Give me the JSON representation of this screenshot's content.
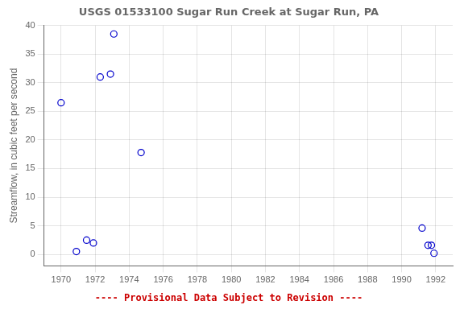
{
  "chart_data": {
    "type": "scatter",
    "title": "USGS 01533100 Sugar Run Creek at Sugar Run, PA",
    "ylabel": "Streamflow, in cubic feet per second",
    "x": [
      1970.0,
      1970.9,
      1971.5,
      1971.9,
      1972.3,
      1973.1,
      1972.9,
      1974.7,
      1991.2,
      1991.55,
      1991.75,
      1991.9
    ],
    "values": [
      26.5,
      0.5,
      2.5,
      2.0,
      31.0,
      38.5,
      31.5,
      17.8,
      4.6,
      1.6,
      1.6,
      0.2
    ],
    "color": "#0000cc",
    "marker": "open_circle",
    "xlim": [
      1969.0,
      1993.0
    ],
    "ylim": [
      -2,
      40
    ],
    "xticks": [
      1970,
      1972,
      1974,
      1976,
      1978,
      1980,
      1982,
      1984,
      1986,
      1988,
      1990,
      1992
    ],
    "yticks": [
      0,
      5,
      10,
      15,
      20,
      25,
      30,
      35,
      40
    ],
    "grid": true,
    "annotations": [
      {
        "text": "---- Provisional Data Subject to Revision ----",
        "color": "#cc0000"
      }
    ]
  }
}
